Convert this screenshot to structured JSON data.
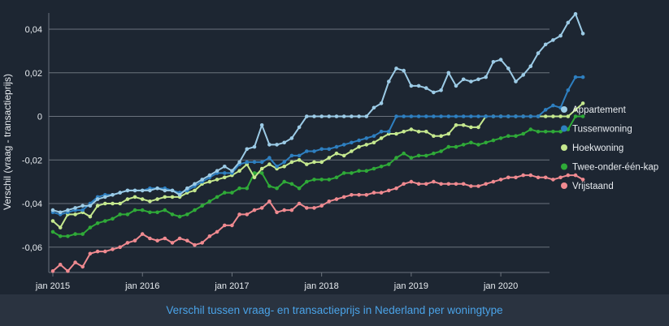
{
  "chart_data": {
    "type": "line",
    "ylabel": "Verschil (vraag - transactieprijs)",
    "xlabel": "",
    "ylim": [
      -0.07,
      0.048
    ],
    "yticks": [
      0.04,
      0.02,
      0,
      -0.02,
      -0.04,
      -0.06
    ],
    "ytick_labels": [
      "0,04",
      "0,02",
      "0",
      "-0,02",
      "-0,04",
      "-0,06"
    ],
    "xticks": [
      0,
      12,
      24,
      36,
      48,
      60
    ],
    "xtick_labels": [
      "jan 2015",
      "jan 2016",
      "jan 2017",
      "jan 2018",
      "jan 2019",
      "jan 2020"
    ],
    "x_start": "jan 2015",
    "x_step": "month",
    "grid": true,
    "legend_position": "right",
    "series": [
      {
        "name": "Appartement",
        "color": "#9ccbe6",
        "values": [
          -0.043,
          -0.044,
          -0.043,
          -0.042,
          -0.041,
          -0.041,
          -0.038,
          -0.037,
          -0.036,
          -0.035,
          -0.034,
          -0.034,
          -0.034,
          -0.034,
          -0.033,
          -0.034,
          -0.034,
          -0.036,
          -0.033,
          -0.031,
          -0.029,
          -0.027,
          -0.025,
          -0.023,
          -0.025,
          -0.021,
          -0.015,
          -0.014,
          -0.004,
          -0.013,
          -0.013,
          -0.012,
          -0.01,
          -0.005,
          0,
          0,
          0,
          0,
          0,
          0,
          0,
          0,
          0,
          0.004,
          0.006,
          0.016,
          0.022,
          0.021,
          0.014,
          0.014,
          0.013,
          0.011,
          0.012,
          0.02,
          0.014,
          0.017,
          0.016,
          0.017,
          0.018,
          0.025,
          0.026,
          0.022,
          0.016,
          0.019,
          0.023,
          0.029,
          0.033,
          0.035,
          0.037,
          0.043,
          0.047,
          0.038
        ]
      },
      {
        "name": "Tussenwoning",
        "color": "#2e7fc0",
        "values": [
          -0.044,
          -0.045,
          -0.044,
          -0.043,
          -0.043,
          -0.04,
          -0.037,
          -0.036,
          -0.036,
          -0.035,
          -0.034,
          -0.034,
          -0.034,
          -0.033,
          -0.033,
          -0.033,
          -0.034,
          -0.035,
          -0.034,
          -0.032,
          -0.03,
          -0.028,
          -0.026,
          -0.026,
          -0.026,
          -0.022,
          -0.021,
          -0.021,
          -0.021,
          -0.019,
          -0.023,
          -0.021,
          -0.018,
          -0.018,
          -0.016,
          -0.016,
          -0.015,
          -0.015,
          -0.014,
          -0.013,
          -0.012,
          -0.011,
          -0.01,
          -0.009,
          -0.007,
          -0.007,
          0,
          0,
          0,
          0,
          0,
          0,
          0,
          0,
          0,
          0,
          0,
          0,
          0,
          0,
          0,
          0,
          0,
          0,
          0,
          0,
          0.003,
          0.005,
          0.004,
          0.012,
          0.018,
          0.018
        ]
      },
      {
        "name": "Hoekwoning",
        "color": "#c5e88e",
        "values": [
          -0.048,
          -0.051,
          -0.045,
          -0.045,
          -0.044,
          -0.046,
          -0.041,
          -0.04,
          -0.04,
          -0.04,
          -0.038,
          -0.037,
          -0.038,
          -0.039,
          -0.038,
          -0.037,
          -0.037,
          -0.037,
          -0.035,
          -0.034,
          -0.031,
          -0.03,
          -0.029,
          -0.028,
          -0.027,
          -0.025,
          -0.022,
          -0.028,
          -0.024,
          -0.022,
          -0.024,
          -0.023,
          -0.021,
          -0.02,
          -0.022,
          -0.021,
          -0.021,
          -0.019,
          -0.017,
          -0.018,
          -0.016,
          -0.014,
          -0.013,
          -0.012,
          -0.01,
          -0.008,
          -0.008,
          -0.007,
          -0.006,
          -0.007,
          -0.007,
          -0.009,
          -0.009,
          -0.008,
          -0.004,
          -0.004,
          -0.005,
          -0.005,
          0,
          0,
          0,
          0,
          0,
          0,
          0,
          0,
          0,
          0,
          0,
          0,
          0.003,
          0.006
        ]
      },
      {
        "name": "Twee-onder-één-kap",
        "color": "#2faa38",
        "values": [
          -0.053,
          -0.055,
          -0.055,
          -0.054,
          -0.054,
          -0.051,
          -0.049,
          -0.048,
          -0.047,
          -0.045,
          -0.045,
          -0.043,
          -0.043,
          -0.044,
          -0.044,
          -0.043,
          -0.045,
          -0.046,
          -0.045,
          -0.043,
          -0.041,
          -0.039,
          -0.037,
          -0.035,
          -0.035,
          -0.033,
          -0.033,
          -0.026,
          -0.026,
          -0.032,
          -0.033,
          -0.03,
          -0.031,
          -0.033,
          -0.03,
          -0.029,
          -0.029,
          -0.029,
          -0.028,
          -0.026,
          -0.026,
          -0.025,
          -0.025,
          -0.024,
          -0.023,
          -0.022,
          -0.019,
          -0.017,
          -0.019,
          -0.018,
          -0.018,
          -0.017,
          -0.016,
          -0.014,
          -0.014,
          -0.013,
          -0.012,
          -0.013,
          -0.012,
          -0.011,
          -0.01,
          -0.009,
          -0.009,
          -0.008,
          -0.006,
          -0.007,
          -0.007,
          -0.007,
          -0.007,
          -0.006,
          0,
          0
        ]
      },
      {
        "name": "Vrijstaand",
        "color": "#f08a90",
        "values": [
          -0.071,
          -0.068,
          -0.071,
          -0.067,
          -0.069,
          -0.063,
          -0.062,
          -0.062,
          -0.061,
          -0.06,
          -0.058,
          -0.057,
          -0.054,
          -0.056,
          -0.057,
          -0.056,
          -0.058,
          -0.056,
          -0.057,
          -0.059,
          -0.058,
          -0.055,
          -0.053,
          -0.05,
          -0.05,
          -0.045,
          -0.045,
          -0.043,
          -0.042,
          -0.039,
          -0.044,
          -0.043,
          -0.043,
          -0.04,
          -0.042,
          -0.042,
          -0.041,
          -0.039,
          -0.038,
          -0.037,
          -0.036,
          -0.036,
          -0.036,
          -0.035,
          -0.035,
          -0.034,
          -0.033,
          -0.031,
          -0.03,
          -0.031,
          -0.031,
          -0.03,
          -0.031,
          -0.031,
          -0.031,
          -0.031,
          -0.032,
          -0.032,
          -0.031,
          -0.03,
          -0.029,
          -0.028,
          -0.028,
          -0.027,
          -0.027,
          -0.028,
          -0.028,
          -0.029,
          -0.028,
          -0.027,
          -0.027,
          -0.029
        ]
      }
    ]
  },
  "caption": "Verschil tussen vraag- en transactieprijs in Nederland per woningtype",
  "colors": {
    "background": "#1d2632",
    "grid": "#6b737d",
    "text": "#e8ecf0",
    "caption": "#4aa3e8"
  }
}
